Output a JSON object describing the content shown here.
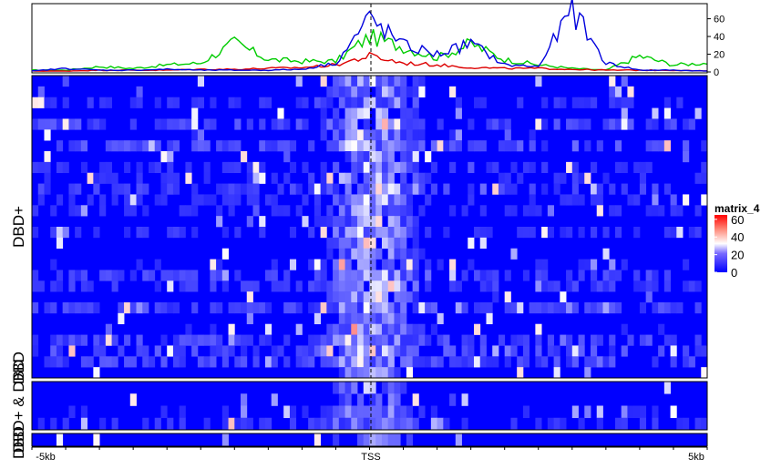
{
  "chart_data": {
    "type": "heatmap",
    "profile": {
      "type": "line",
      "ylim": [
        0,
        75
      ],
      "yticks": [
        "60",
        "40",
        "20",
        "0"
      ],
      "series": [
        {
          "color": "#00cc00",
          "x": [
            -5000,
            -4500,
            -4000,
            -3500,
            -3000,
            -2500,
            -2000,
            -1500,
            -1000,
            -500,
            0,
            500,
            1000,
            1500,
            2000,
            2500,
            3000,
            3500,
            4000,
            4500,
            5000
          ],
          "values": [
            2,
            2,
            6,
            4,
            8,
            10,
            33,
            14,
            12,
            12,
            40,
            28,
            16,
            32,
            14,
            8,
            4,
            2,
            18,
            8,
            10
          ]
        },
        {
          "color": "#dd0000",
          "x": [
            -5000,
            -4500,
            -4000,
            -3500,
            -3000,
            -2500,
            -2000,
            -1500,
            -1000,
            -500,
            0,
            500,
            1000,
            1500,
            2000,
            2500,
            3000,
            3500,
            4000,
            4500,
            5000
          ],
          "values": [
            1,
            1,
            2,
            2,
            2,
            3,
            3,
            4,
            5,
            8,
            18,
            10,
            8,
            5,
            4,
            4,
            3,
            2,
            2,
            2,
            1
          ]
        },
        {
          "color": "#0000dd",
          "x": [
            -5000,
            -4500,
            -4000,
            -3500,
            -3000,
            -2500,
            -2000,
            -1500,
            -1000,
            -500,
            0,
            500,
            1000,
            1500,
            2000,
            2500,
            3000,
            3500,
            4000,
            4500,
            5000
          ],
          "values": [
            1,
            4,
            2,
            2,
            3,
            2,
            2,
            2,
            3,
            10,
            60,
            30,
            20,
            32,
            8,
            6,
            70,
            10,
            2,
            2,
            1
          ]
        }
      ]
    },
    "x_tick_labels": [
      "-5kb",
      "TSS",
      "5kb"
    ],
    "groups": [
      {
        "label": "DBD+",
        "rows": 26
      },
      {
        "label": "DBD",
        "rows": 2
      },
      {
        "label": "DBD+ & DBD",
        "rows": 4
      },
      {
        "label": "DBD",
        "rows": 1
      }
    ],
    "legend": {
      "title": "matrix_4",
      "ticks": [
        "60",
        "40",
        "20",
        "0"
      ],
      "range": [
        0,
        65
      ],
      "colors": [
        "#0000ff",
        "#ffffff",
        "#ff0000"
      ]
    }
  }
}
